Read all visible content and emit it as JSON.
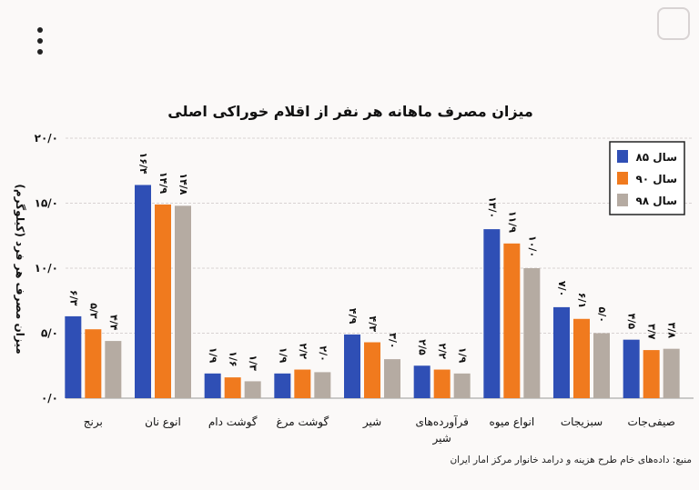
{
  "chart_data": {
    "type": "bar",
    "title": "میزان مصرف ماهانه هر نفر از اقلام خوراکی اصلی",
    "ylabel": "میزان مصرف هر فرد (کیلوگرم)",
    "xlabel": "",
    "ylim": [
      0,
      20
    ],
    "yticks": [
      0,
      5,
      10,
      15,
      20
    ],
    "ytick_labels": [
      "۰/۰",
      "۵/۰",
      "۱۰/۰",
      "۱۵/۰",
      "۲۰/۰"
    ],
    "grid": true,
    "legend_position": "top-right",
    "categories": [
      "برنج",
      "انوع نان",
      "گوشت دام",
      "گوشت مرغ",
      "شیر",
      "فرآورده‌های شیر",
      "انواع میوه",
      "سبزیجات",
      "صیفی‌جات"
    ],
    "series": [
      {
        "name": "سال ۸۵",
        "color": "#2f4fb5",
        "values": [
          6.3,
          16.4,
          1.9,
          1.9,
          4.9,
          2.5,
          13.0,
          7.0,
          4.5
        ],
        "labels": [
          "۶/۳",
          "۱۶/۴",
          "۱/۹",
          "۱/۹",
          "۴/۹",
          "۲/۵",
          "۱۳/۰",
          "۷/۰",
          "۴/۵"
        ]
      },
      {
        "name": "سال ۹۰",
        "color": "#f07a1e",
        "values": [
          5.3,
          14.9,
          1.6,
          2.2,
          4.3,
          2.2,
          11.9,
          6.1,
          3.7
        ],
        "labels": [
          "۵/۳",
          "۱۴/۹",
          "۱/۶",
          "۲/۲",
          "۴/۳",
          "۲/۲",
          "۱۱/۹",
          "۶/۱",
          "۳/۷"
        ]
      },
      {
        "name": "سال ۹۸",
        "color": "#b5aba2",
        "values": [
          4.4,
          14.8,
          1.3,
          2.0,
          3.0,
          1.9,
          10.0,
          5.0,
          3.8
        ],
        "labels": [
          "۴/۴",
          "۱۴/۸",
          "۱/۳",
          "۲/۰",
          "۳/۰",
          "۱/۹",
          "۱۰/۰",
          "۵/۰",
          "۳/۸"
        ]
      }
    ]
  },
  "source_note": "منبع: داده‌های خام طرح هزینه و درامد خانوار مرکز امار ایران"
}
